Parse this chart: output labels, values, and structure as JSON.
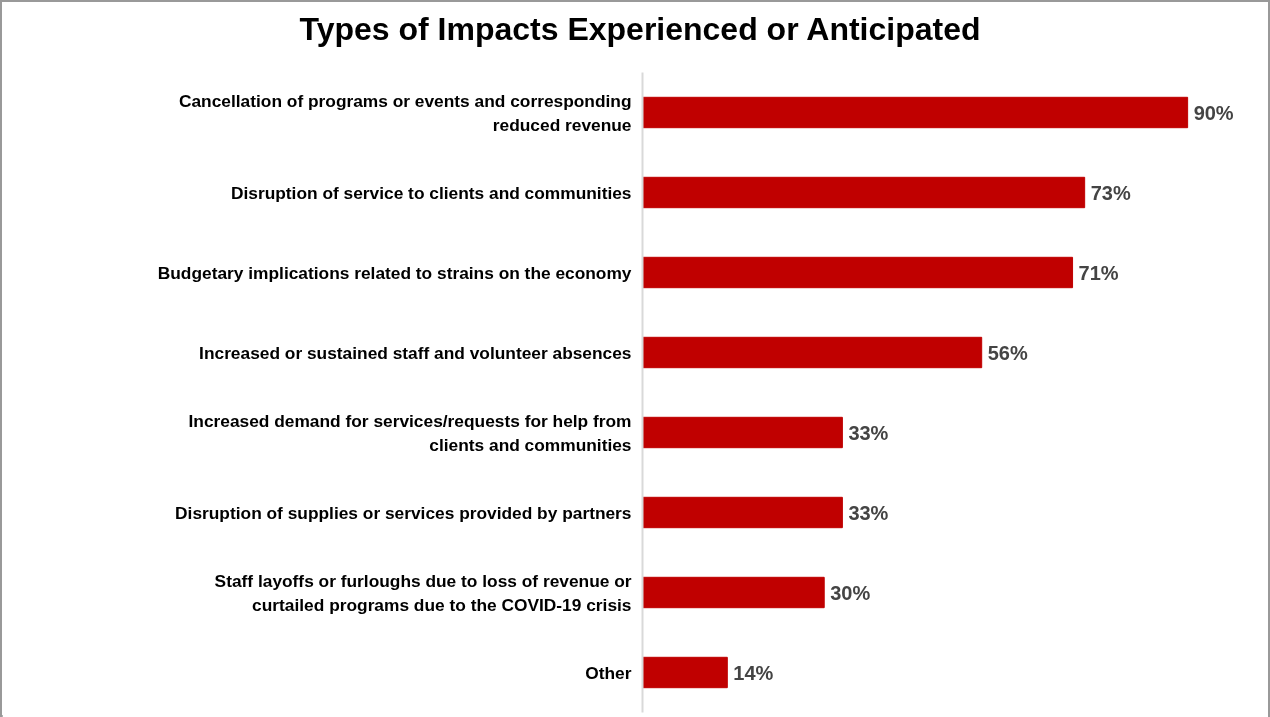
{
  "chart_data": {
    "type": "bar",
    "orientation": "horizontal",
    "title": "Types of Impacts Experienced or Anticipated",
    "categories": [
      "Cancellation of programs or events and corresponding reduced revenue",
      "Disruption of service to clients and communities",
      "Budgetary implications related to strains on the economy",
      "Increased or sustained staff and volunteer absences",
      "Increased demand for services/requests for help from clients and communities",
      "Disruption of supplies or services provided by partners",
      "Staff layoffs or furloughs due to loss of revenue or curtailed programs due to the COVID-19 crisis",
      "Other"
    ],
    "values": [
      90,
      73,
      71,
      56,
      33,
      33,
      30,
      14
    ],
    "value_labels": [
      "90%",
      "73%",
      "71%",
      "56%",
      "33%",
      "33%",
      "30%",
      "14%"
    ],
    "color": "#c00000",
    "grid": false
  }
}
